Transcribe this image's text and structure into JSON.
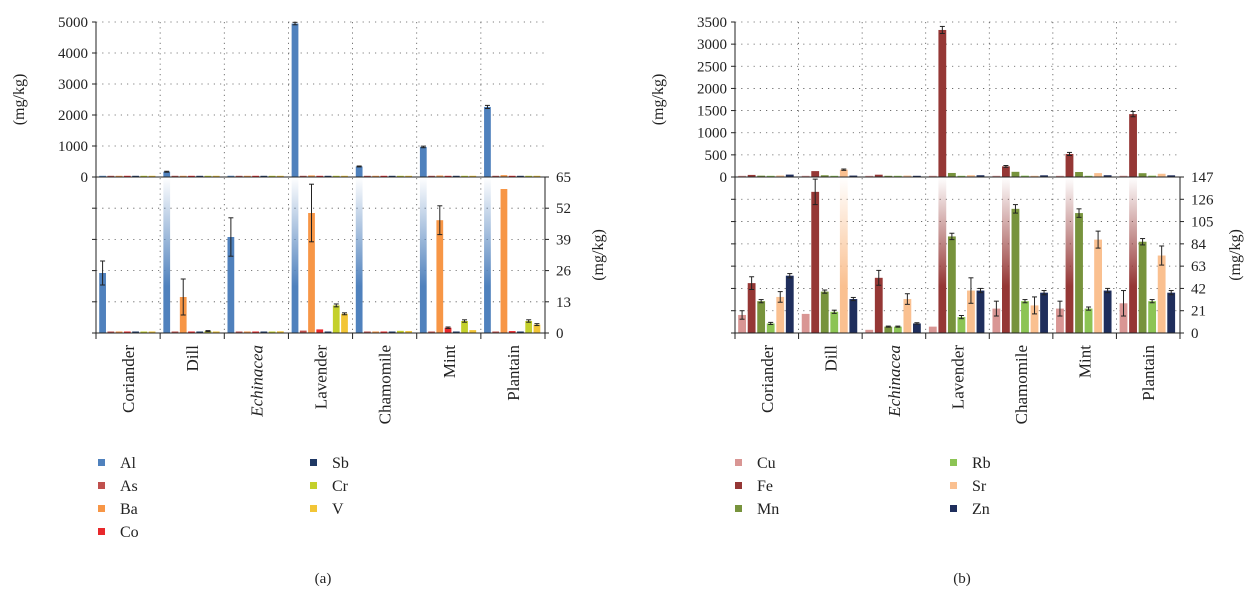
{
  "chart_data": [
    {
      "type": "bar",
      "panel_label": "(a)",
      "categories": [
        "Coriander",
        "Dill",
        "Echinacea",
        "Lavender",
        "Chamomile",
        "Mint",
        "Plantain"
      ],
      "category_italic": [
        false,
        false,
        true,
        false,
        false,
        false,
        false
      ],
      "top_axis": {
        "label": "(mg/kg)",
        "ylim": [
          0,
          5000
        ],
        "ticks": [
          "0",
          "1000",
          "2000",
          "3000",
          "4000",
          "5000"
        ]
      },
      "bottom_axis": {
        "label": "(mg/kg)",
        "ylim": [
          0,
          65
        ],
        "ticks": [
          "0",
          "13",
          "26",
          "39",
          "52",
          "65"
        ]
      },
      "grid": true,
      "legend_position": "bottom",
      "series": [
        {
          "name": "Al",
          "color": "#4f81bd",
          "values": [
            25,
            170,
            40,
            4950,
            340,
            970,
            2260
          ],
          "errors": [
            5,
            15,
            8,
            40,
            15,
            25,
            50
          ]
        },
        {
          "name": "As",
          "color": "#c0504d",
          "values": [
            0.2,
            0.3,
            0.2,
            1.0,
            0.3,
            0.5,
            0.5
          ],
          "errors": [
            0,
            0,
            0,
            0,
            0,
            0,
            0
          ]
        },
        {
          "name": "Ba",
          "color": "#f79646",
          "values": [
            0.2,
            15,
            0.3,
            50,
            0.3,
            47,
            60
          ],
          "errors": [
            0,
            7.5,
            0,
            12,
            0,
            6,
            0
          ]
        },
        {
          "name": "Co",
          "color": "#e8282b",
          "values": [
            0.1,
            0.3,
            0.2,
            1.5,
            0.2,
            2.2,
            0.8
          ],
          "errors": [
            0,
            0,
            0,
            0,
            0,
            0.3,
            0
          ]
        },
        {
          "name": "Sb",
          "color": "#1f3864",
          "values": [
            0.2,
            0.3,
            0.3,
            0.5,
            0.4,
            0.4,
            0.4
          ],
          "errors": [
            0,
            0,
            0,
            0,
            0,
            0,
            0
          ]
        },
        {
          "name": "Cr",
          "color": "#c4d02b",
          "values": [
            0.3,
            0.8,
            0.6,
            11.5,
            0.9,
            5.0,
            5.0
          ],
          "errors": [
            0,
            0.2,
            0,
            0.6,
            0,
            0.5,
            0.5
          ]
        },
        {
          "name": "V",
          "color": "#f2c536",
          "values": [
            0.3,
            0.4,
            0.7,
            8.0,
            0.8,
            1.2,
            3.5
          ],
          "errors": [
            0,
            0,
            0,
            0.4,
            0,
            0,
            0.4
          ]
        }
      ]
    },
    {
      "type": "bar",
      "panel_label": "(b)",
      "categories": [
        "Coriander",
        "Dill",
        "Echinacea",
        "Lavender",
        "Chamomile",
        "Mint",
        "Plantain"
      ],
      "category_italic": [
        false,
        false,
        true,
        false,
        false,
        false,
        false
      ],
      "top_axis": {
        "label": "(mg/kg)",
        "ylim": [
          0,
          3500
        ],
        "ticks": [
          "0",
          "500",
          "1000",
          "1500",
          "2000",
          "2500",
          "3000",
          "3500"
        ]
      },
      "bottom_axis": {
        "label": "(mg/kg)",
        "ylim": [
          0,
          147
        ],
        "ticks": [
          "0",
          "21",
          "42",
          "63",
          "84",
          "105",
          "126",
          "147"
        ]
      },
      "grid": true,
      "legend_position": "bottom",
      "series": [
        {
          "name": "Cu",
          "color": "#d99694",
          "values": [
            17,
            18,
            3,
            6,
            23,
            23,
            28
          ],
          "errors": [
            4,
            0,
            0,
            0,
            7,
            7,
            12
          ]
        },
        {
          "name": "Fe",
          "color": "#953735",
          "values": [
            47,
            133,
            52,
            3320,
            240,
            520,
            1420
          ],
          "errors": [
            6,
            12,
            7,
            80,
            20,
            35,
            60
          ]
        },
        {
          "name": "Mn",
          "color": "#77933c",
          "values": [
            30,
            39,
            6,
            91,
            117,
            113,
            86
          ],
          "errors": [
            1.5,
            1.5,
            0.5,
            3,
            4,
            4,
            3
          ]
        },
        {
          "name": "Rb",
          "color": "#8cc454",
          "values": [
            9,
            20,
            6,
            15,
            30,
            23,
            30
          ],
          "errors": [
            1,
            1.5,
            0.5,
            1.5,
            1.5,
            1.5,
            1.5
          ]
        },
        {
          "name": "Sr",
          "color": "#fac090",
          "values": [
            34,
            165,
            32,
            40,
            26,
            88,
            73
          ],
          "errors": [
            5,
            15,
            5,
            12,
            8,
            8,
            9
          ]
        },
        {
          "name": "Zn",
          "color": "#1f2e5c",
          "values": [
            54,
            32,
            9,
            40,
            38,
            40,
            38
          ],
          "errors": [
            2,
            1.5,
            0.7,
            2,
            2,
            2,
            2
          ]
        }
      ]
    }
  ]
}
